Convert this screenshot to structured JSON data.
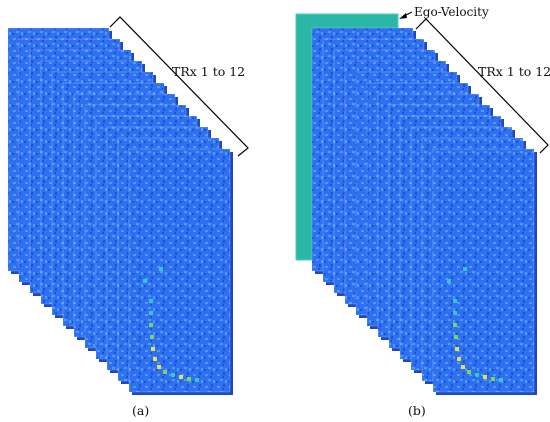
{
  "panel_a": {
    "label": "(a)",
    "bracket_label": "TRx 1 to 12"
  },
  "panel_b": {
    "label": "(b)",
    "bracket_label": "TRx 1 to 12",
    "ego_label": "Ego-Velocity"
  },
  "diagram": {
    "frame_count": 12,
    "colors": {
      "frame_base": "#2f6ff2",
      "frame_shadow": "#1d47c9",
      "speckle_light": "#4a9cf2",
      "speckle_dark": "#1e52d8",
      "hot_cyan": "#39c6c2",
      "hot_green": "#7ad65a",
      "hot_yellow": "#e8e23a",
      "ego_velocity": "#2ab7a5",
      "ego_velocity_edge": "#45d1bd",
      "line": "#000000"
    }
  }
}
